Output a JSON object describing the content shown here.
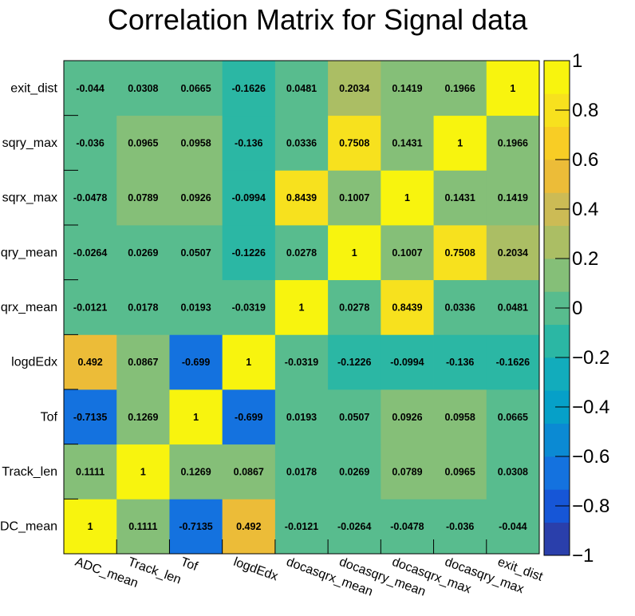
{
  "chart_data": {
    "type": "heatmap",
    "title": "Correlation Matrix for Signal data",
    "x_labels": [
      "ADC_mean",
      "Track_len",
      "Tof",
      "logdEdx",
      "docasqrx_mean",
      "docasqry_mean",
      "docasqrx_max",
      "docasqry_max",
      "exit_dist"
    ],
    "y_labels_bottom_to_top": [
      "ADC_mean",
      "Track_len",
      "Tof",
      "logdEdx",
      "docasqrx_mean",
      "docasqry_mean",
      "docasqrx_max",
      "docasqry_max",
      "exit_dist"
    ],
    "y_labels_displayed": [
      "DC_mean",
      "Track_len",
      "Tof",
      "logdEdx",
      "qrx_mean",
      "qry_mean",
      "sqrx_max",
      "sqry_max",
      "exit_dist"
    ],
    "values_rows_bottom_to_top": [
      [
        "1",
        "0.1111",
        "-0.7135",
        "0.492",
        "-0.0121",
        "-0.0264",
        "-0.0478",
        "-0.036",
        "-0.044"
      ],
      [
        "0.1111",
        "1",
        "0.1269",
        "0.0867",
        "0.0178",
        "0.0269",
        "0.0789",
        "0.0965",
        "0.0308"
      ],
      [
        "-0.7135",
        "0.1269",
        "1",
        "-0.699",
        "0.0193",
        "0.0507",
        "0.0926",
        "0.0958",
        "0.0665"
      ],
      [
        "0.492",
        "0.0867",
        "-0.699",
        "1",
        "-0.0319",
        "-0.1226",
        "-0.0994",
        "-0.136",
        "-0.1626"
      ],
      [
        "-0.0121",
        "0.0178",
        "0.0193",
        "-0.0319",
        "1",
        "0.0278",
        "0.8439",
        "0.0336",
        "0.0481"
      ],
      [
        "-0.0264",
        "0.0269",
        "0.0507",
        "-0.1226",
        "0.0278",
        "1",
        "0.1007",
        "0.7508",
        "0.2034"
      ],
      [
        "-0.0478",
        "0.0789",
        "0.0926",
        "-0.0994",
        "0.8439",
        "0.1007",
        "1",
        "0.1431",
        "0.1419"
      ],
      [
        "-0.036",
        "0.0965",
        "0.0958",
        "-0.136",
        "0.0336",
        "0.7508",
        "0.1431",
        "1",
        "0.1966"
      ],
      [
        "-0.044",
        "0.0308",
        "0.0665",
        "-0.1626",
        "0.0481",
        "0.2034",
        "0.1419",
        "0.1966",
        "1"
      ]
    ],
    "zlim": [
      -1,
      1
    ],
    "z_tick_values": [
      1,
      0.8,
      0.6,
      0.4,
      0.2,
      0,
      -0.2,
      -0.4,
      -0.6,
      -0.8,
      -1
    ],
    "z_tick_labels": [
      "1",
      "0.8",
      "0.6",
      "0.4",
      "0.2",
      "0",
      "−0.2",
      "−0.4",
      "−0.6",
      "−0.8",
      "−1"
    ],
    "palette": [
      "#2a3fab",
      "#1656d7",
      "#1472df",
      "#0b8ad3",
      "#06a0c8",
      "#12acbc",
      "#2bb7a4",
      "#58bc8e",
      "#85bf78",
      "#abbe64",
      "#ccbb55",
      "#ecbc38",
      "#f8cd25",
      "#f7e11e",
      "#f8f40e"
    ]
  }
}
